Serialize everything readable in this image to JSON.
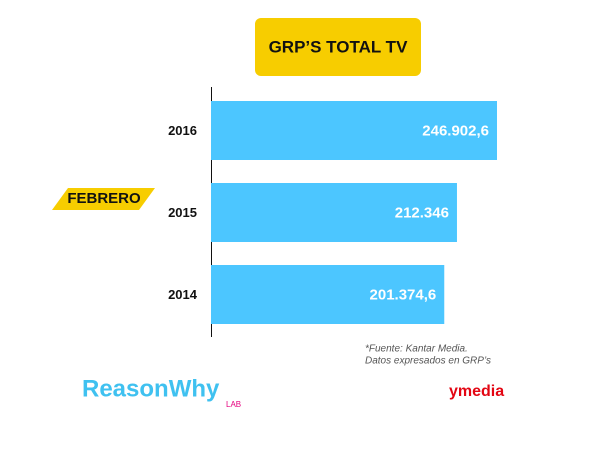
{
  "chart_data": {
    "type": "hbar",
    "title": "GRP’S TOTAL TV",
    "categories": [
      "2016",
      "2015",
      "2014"
    ],
    "values": [
      246902.6,
      212346,
      201374.6
    ],
    "value_labels": [
      "246.902,6",
      "212.346",
      "201.374,6"
    ],
    "color": "#4cc6ff",
    "period": "FEBRERO",
    "source": [
      "*Fuente: Kantar Media.",
      "Datos expresados en GRP’s"
    ]
  },
  "logos": {
    "reasonwhy": "ReasonWhy",
    "lab": "LAB",
    "ymedia": "ymedia"
  }
}
